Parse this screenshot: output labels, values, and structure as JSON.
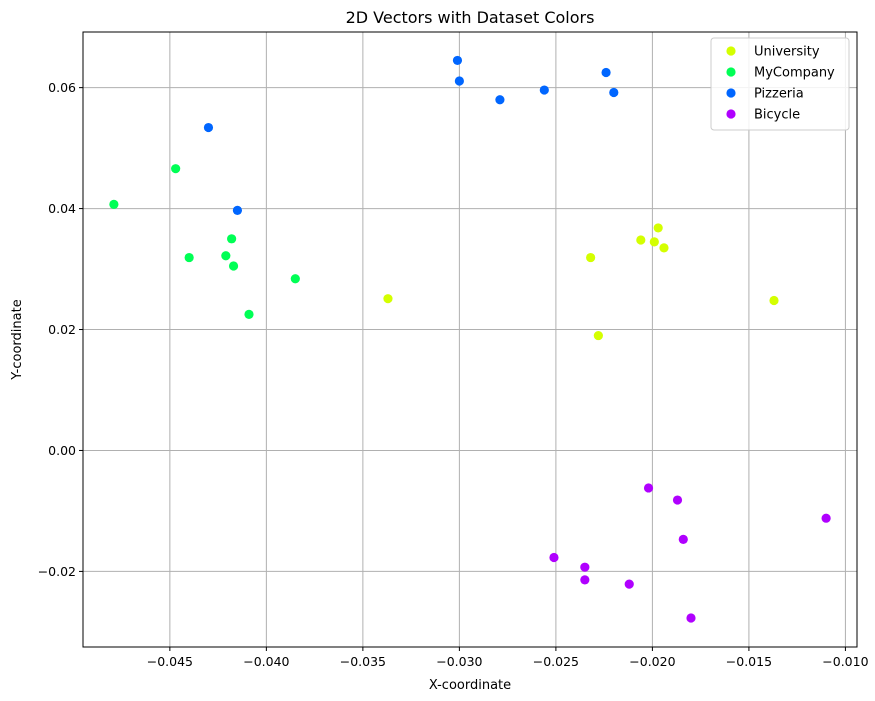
{
  "chart_data": {
    "type": "scatter",
    "title": "2D Vectors with Dataset Colors",
    "xlabel": "X-coordinate",
    "ylabel": "Y-coordinate",
    "xlim": [
      -0.0495,
      -0.0094
    ],
    "ylim": [
      -0.0325,
      0.0692
    ],
    "xticks": [
      -0.045,
      -0.04,
      -0.035,
      -0.03,
      -0.025,
      -0.02,
      -0.015,
      -0.01
    ],
    "xtick_labels": [
      "−0.045",
      "−0.040",
      "−0.035",
      "−0.030",
      "−0.025",
      "−0.020",
      "−0.015",
      "−0.010"
    ],
    "yticks": [
      -0.02,
      0.0,
      0.02,
      0.04,
      0.06
    ],
    "ytick_labels": [
      "−0.02",
      "0.00",
      "0.02",
      "0.04",
      "0.06"
    ],
    "grid": true,
    "legend_position": "top-right",
    "series": [
      {
        "name": "University",
        "color": "#d4ff00",
        "points": [
          [
            -0.0232,
            0.0319
          ],
          [
            -0.0206,
            0.0348
          ],
          [
            -0.0199,
            0.0345
          ],
          [
            -0.0197,
            0.0368
          ],
          [
            -0.0194,
            0.0335
          ],
          [
            -0.0337,
            0.0251
          ],
          [
            -0.0228,
            0.019
          ],
          [
            -0.0137,
            0.0248
          ]
        ]
      },
      {
        "name": "MyCompany",
        "color": "#00ff55",
        "points": [
          [
            -0.0479,
            0.0407
          ],
          [
            -0.0447,
            0.0466
          ],
          [
            -0.044,
            0.0319
          ],
          [
            -0.0421,
            0.0322
          ],
          [
            -0.0418,
            0.035
          ],
          [
            -0.0417,
            0.0305
          ],
          [
            -0.0409,
            0.0225
          ],
          [
            -0.0385,
            0.0284
          ]
        ]
      },
      {
        "name": "Pizzeria",
        "color": "#0066ff",
        "points": [
          [
            -0.043,
            0.0534
          ],
          [
            -0.0415,
            0.0397
          ],
          [
            -0.0301,
            0.0645
          ],
          [
            -0.03,
            0.0611
          ],
          [
            -0.0279,
            0.058
          ],
          [
            -0.0256,
            0.0596
          ],
          [
            -0.0224,
            0.0625
          ],
          [
            -0.022,
            0.0592
          ]
        ]
      },
      {
        "name": "Bicycle",
        "color": "#b000ff",
        "points": [
          [
            -0.0202,
            -0.0062
          ],
          [
            -0.0187,
            -0.0082
          ],
          [
            -0.0184,
            -0.0147
          ],
          [
            -0.011,
            -0.0112
          ],
          [
            -0.0251,
            -0.0177
          ],
          [
            -0.0235,
            -0.0193
          ],
          [
            -0.0235,
            -0.0214
          ],
          [
            -0.0212,
            -0.0221
          ],
          [
            -0.018,
            -0.0277
          ]
        ]
      }
    ]
  }
}
